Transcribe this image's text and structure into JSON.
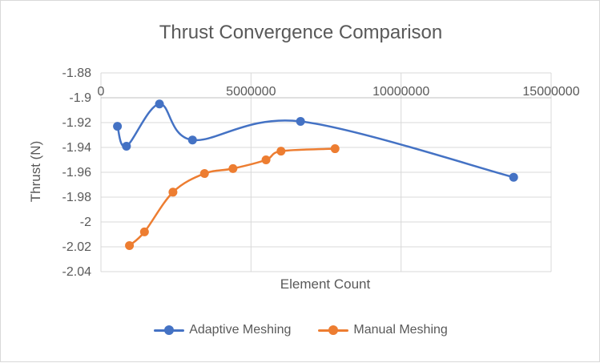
{
  "chart_data": {
    "type": "scatter",
    "title": "Thrust Convergence Comparison",
    "xlabel": "Element Count",
    "ylabel": "Thrust (N)",
    "xlim": [
      0,
      15000000
    ],
    "ylim": [
      -2.04,
      -1.88
    ],
    "x_ticks": [
      0,
      5000000,
      10000000,
      15000000
    ],
    "y_ticks": [
      -1.88,
      -1.9,
      -1.92,
      -1.94,
      -1.96,
      -1.98,
      -2,
      -2.02,
      -2.04
    ],
    "x_axis_position": "top",
    "smoothed_lines": true,
    "legend_position": "bottom",
    "series": [
      {
        "name": "Adaptive Meshing",
        "color": "#4472c4",
        "x": [
          550000,
          850000,
          1950000,
          3050000,
          6650000,
          13750000
        ],
        "y": [
          -1.923,
          -1.939,
          -1.905,
          -1.934,
          -1.919,
          -1.964
        ]
      },
      {
        "name": "Manual Meshing",
        "color": "#ed7d31",
        "x": [
          950000,
          1450000,
          2400000,
          3450000,
          4400000,
          5500000,
          6000000,
          7800000
        ],
        "y": [
          -2.019,
          -2.008,
          -1.976,
          -1.961,
          -1.957,
          -1.95,
          -1.943,
          -1.941
        ]
      }
    ]
  }
}
